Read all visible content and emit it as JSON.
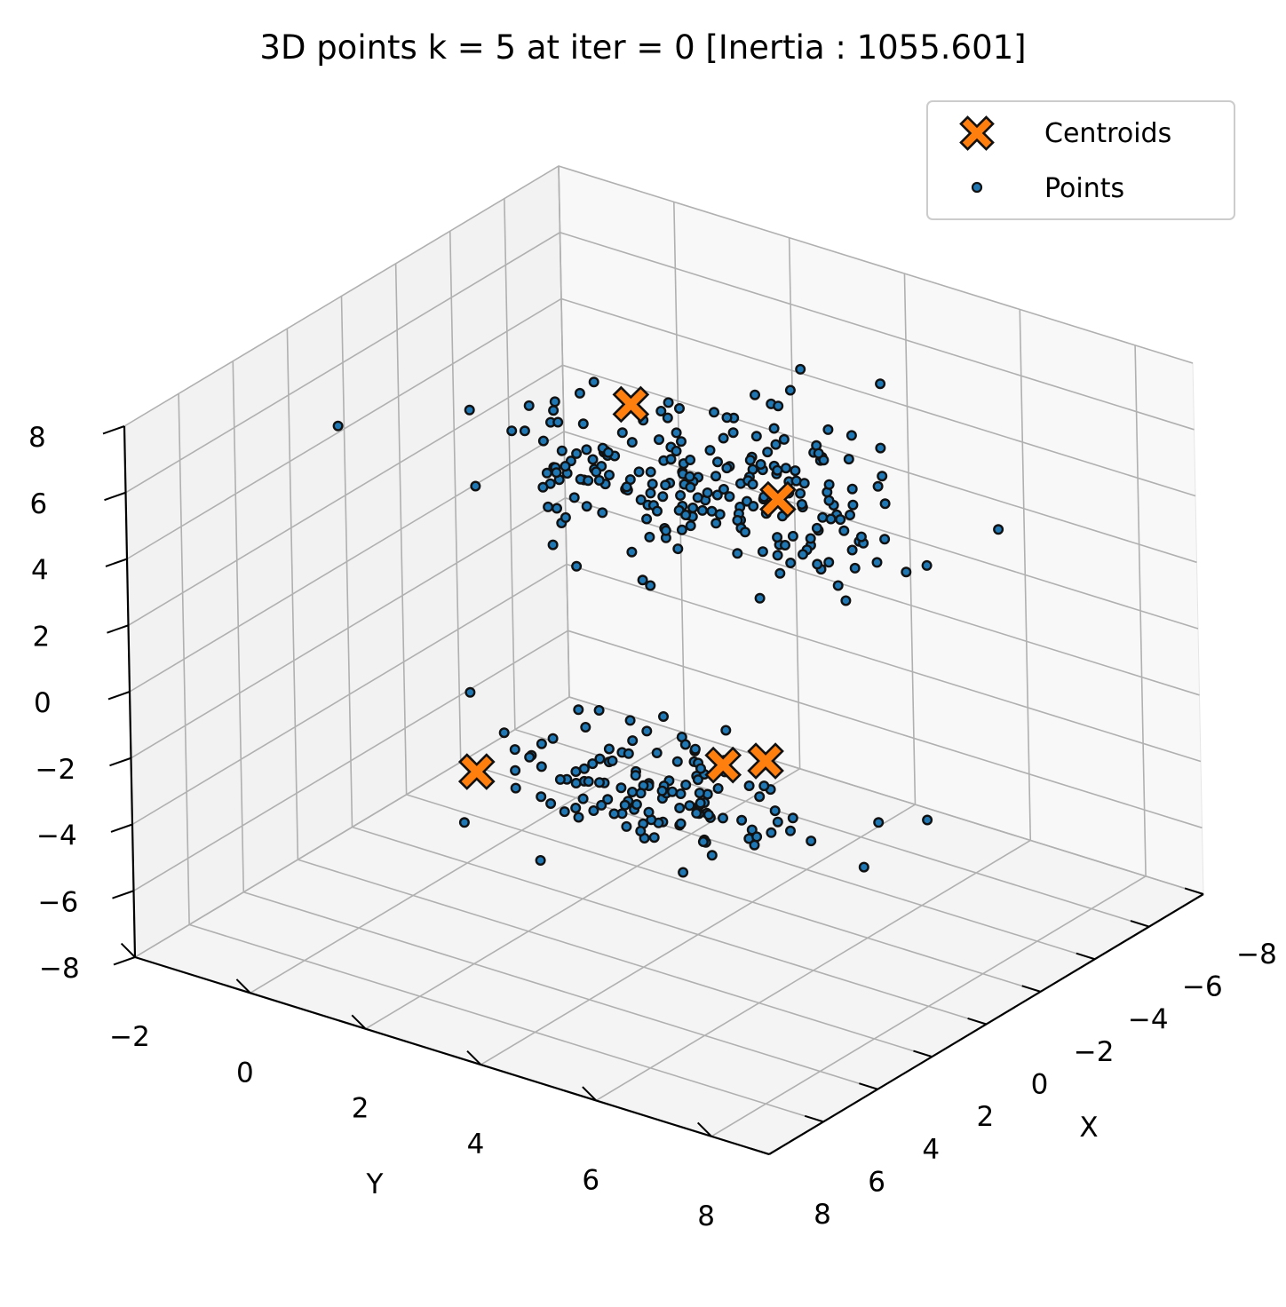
{
  "chart_data": {
    "type": "scatter",
    "projection": "3d",
    "title": "3D points k = 5 at iter = 0 [Inertia : 1055.601]",
    "xlabel": "X",
    "ylabel": "Y",
    "zlabel": "",
    "xlim": [
      -8,
      8
    ],
    "ylim": [
      -2,
      9
    ],
    "zlim": [
      -8,
      8
    ],
    "xticks": [
      "−8",
      "−6",
      "−4",
      "−2",
      "0",
      "2",
      "4",
      "6",
      "8"
    ],
    "yticks": [
      "−2",
      "0",
      "2",
      "4",
      "6",
      "8"
    ],
    "zticks": [
      "−8",
      "−6",
      "−4",
      "−2",
      "0",
      "2",
      "4",
      "6",
      "8"
    ],
    "grid": true,
    "legend": {
      "placement": "top-right",
      "entries": [
        "Centroids",
        "Points"
      ]
    },
    "colors": {
      "points_fill": "#1f77b4",
      "points_edge": "#111111",
      "centroids_fill": "#ff7f0e",
      "centroids_edge": "#111111",
      "pane": "#f2f2f2",
      "grid": "#b0b0b0"
    },
    "series": [
      {
        "name": "Centroids",
        "marker": "X",
        "points": [
          [
            -4.2,
            1.0,
            4.3
          ],
          [
            -2.6,
            4.3,
            4.0
          ],
          [
            4.6,
            2.4,
            -1.7
          ],
          [
            2.3,
            5.6,
            -0.9
          ],
          [
            2.0,
            6.2,
            -0.6
          ]
        ]
      },
      {
        "name": "Points",
        "marker": "o",
        "points": []
      }
    ],
    "clusters": [
      {
        "center": [
          -3.5,
          2.6,
          3.1
        ],
        "spread": [
          1.3,
          1.6,
          0.9
        ],
        "count": 230
      },
      {
        "center": [
          3.2,
          5.0,
          -1.5
        ],
        "spread": [
          1.0,
          1.2,
          0.6
        ],
        "count": 130
      }
    ]
  }
}
